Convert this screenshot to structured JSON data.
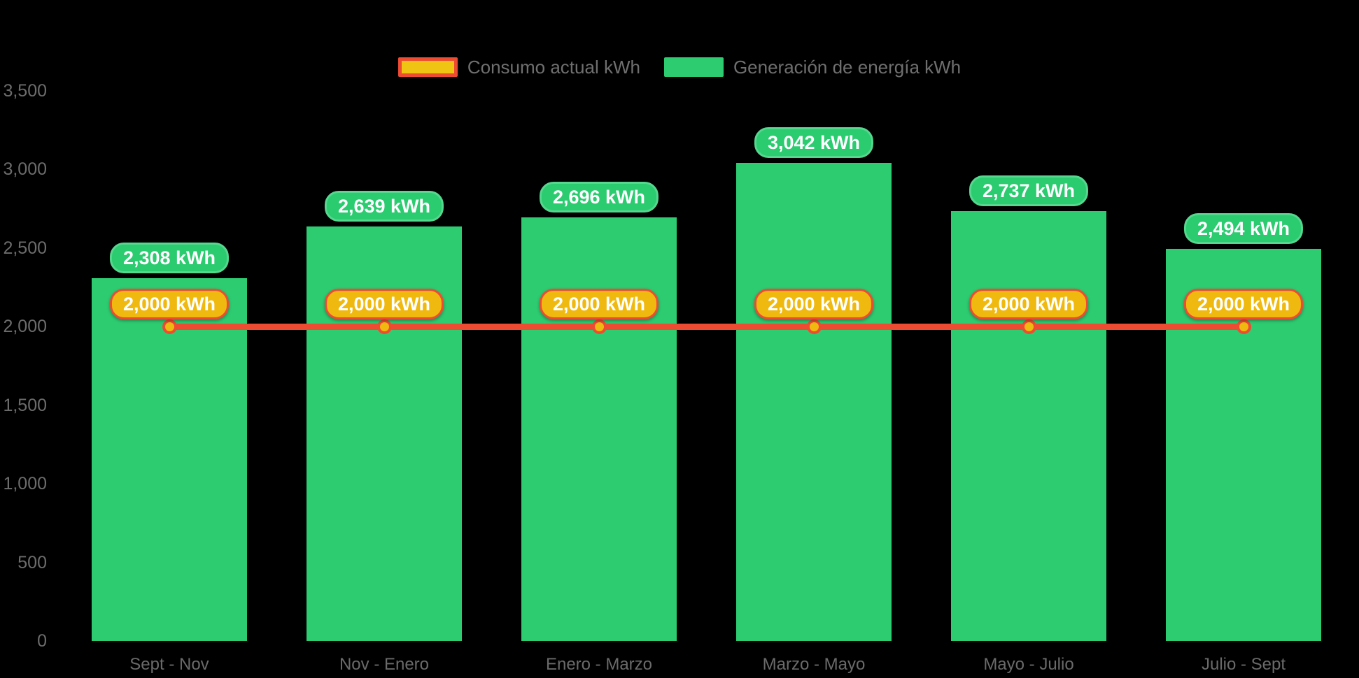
{
  "legend": {
    "items": [
      {
        "label": "Consumo actual kWh",
        "swatch": "outlined-rect",
        "swatch_fill": "#f0c413",
        "swatch_border": "#ee4b33"
      },
      {
        "label": "Generación de energía kWh",
        "swatch": "solid-rect",
        "swatch_fill": "#2ecc71"
      }
    ]
  },
  "colors": {
    "background": "#000000",
    "bar_green": "#2ecc71",
    "badge_green_fill": "#2bcb70",
    "badge_green_border": "#55d78e",
    "consumption_red": "#ee4b33",
    "consumption_yellow": "#f0b90f",
    "axis_text": "#6c6c6c",
    "legend_text": "#6f6f6f",
    "badge_text": "#ffffff"
  },
  "chart_data": {
    "type": "bar",
    "title": "",
    "xlabel": "",
    "ylabel": "",
    "categories": [
      "Sept - Nov",
      "Nov - Enero",
      "Enero - Marzo",
      "Marzo - Mayo",
      "Mayo - Julio",
      "Julio - Sept"
    ],
    "series": [
      {
        "name": "Generación de energía kWh",
        "type": "bar",
        "color": "#2ecc71",
        "values": [
          2308,
          2639,
          2696,
          3042,
          2737,
          2494
        ],
        "labels": [
          "2,308 kWh",
          "2,639 kWh",
          "2,696 kWh",
          "3,042 kWh",
          "2,737 kWh",
          "2,494 kWh"
        ]
      },
      {
        "name": "Consumo actual kWh",
        "type": "line",
        "color": "#ee4b33",
        "marker_fill": "#f0b90f",
        "values": [
          2000,
          2000,
          2000,
          2000,
          2000,
          2000
        ],
        "labels": [
          "2,000 kWh",
          "2,000 kWh",
          "2,000 kWh",
          "2,000 kWh",
          "2,000 kWh",
          "2,000 kWh"
        ]
      }
    ],
    "ylim": [
      0,
      3500
    ],
    "yticks": [
      0,
      500,
      1000,
      1500,
      2000,
      2500,
      3000,
      3500
    ],
    "ytick_labels": [
      "0",
      "500",
      "1,000",
      "1,500",
      "2,000",
      "2,500",
      "3,000",
      "3,500"
    ],
    "grid": false,
    "legend_position": "top-center"
  }
}
